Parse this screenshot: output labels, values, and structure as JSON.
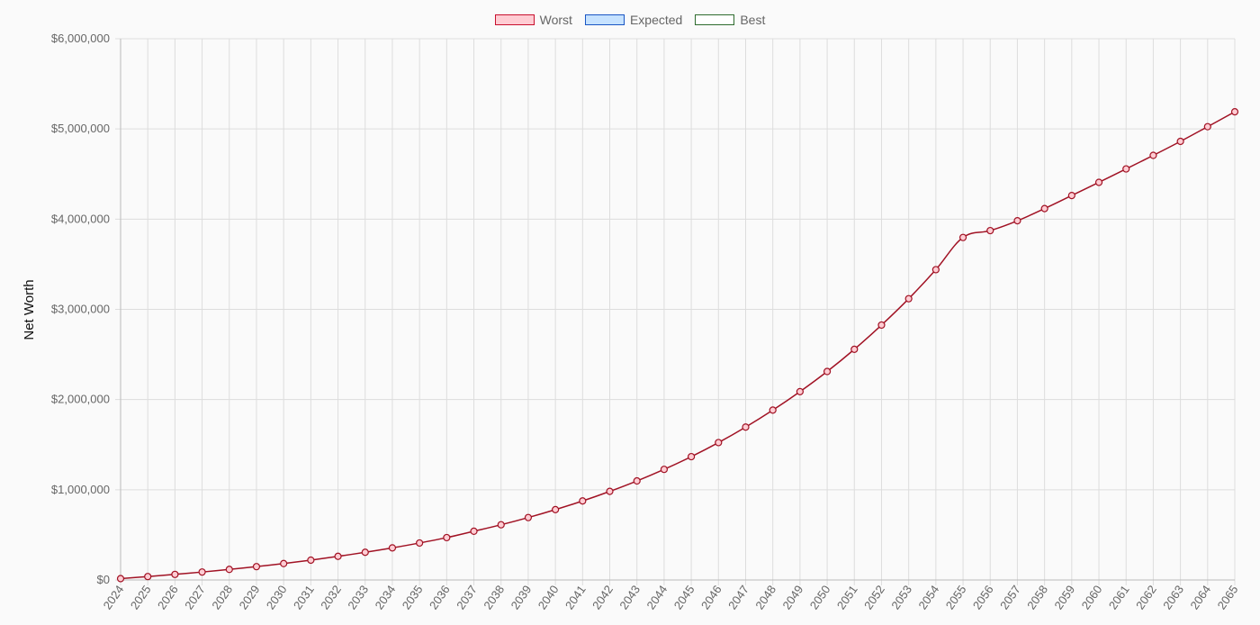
{
  "chart_data": {
    "type": "line",
    "title": "",
    "xlabel": "",
    "ylabel": "Net Worth",
    "ylim": [
      0,
      6000000
    ],
    "y_ticks": [
      "$0",
      "$1,000,000",
      "$2,000,000",
      "$3,000,000",
      "$4,000,000",
      "$5,000,000",
      "$6,000,000"
    ],
    "y_tick_values": [
      0,
      1000000,
      2000000,
      3000000,
      4000000,
      5000000,
      6000000
    ],
    "grid": true,
    "legend_position": "top-center",
    "x": [
      "2024",
      "2025",
      "2026",
      "2027",
      "2028",
      "2029",
      "2030",
      "2031",
      "2032",
      "2033",
      "2034",
      "2035",
      "2036",
      "2037",
      "2038",
      "2039",
      "2040",
      "2041",
      "2042",
      "2043",
      "2044",
      "2045",
      "2046",
      "2047",
      "2048",
      "2049",
      "2050",
      "2051",
      "2052",
      "2053",
      "2054",
      "2055",
      "2056",
      "2057",
      "2058",
      "2059",
      "2060",
      "2061",
      "2062",
      "2063",
      "2064",
      "2065"
    ],
    "legend": [
      {
        "name": "Worst",
        "fill": "#ffccd3",
        "stroke": "#c8102e"
      },
      {
        "name": "Expected",
        "fill": "#c6e2ff",
        "stroke": "#1a56c4"
      },
      {
        "name": "Best",
        "fill": "#ffffff",
        "stroke": "#2e6b2e"
      }
    ],
    "series": [
      {
        "name": "Worst",
        "color": "#a11224",
        "point_fill": "#ffccd3",
        "values": [
          15000,
          38000,
          62000,
          88000,
          117000,
          148000,
          182000,
          220000,
          262000,
          307000,
          356000,
          410000,
          470000,
          540000,
          612000,
          692000,
          780000,
          876000,
          982000,
          1098000,
          1226000,
          1367000,
          1523000,
          1695000,
          1883000,
          2088000,
          2311000,
          2557000,
          2826000,
          3118000,
          3440000,
          3797000,
          3873000,
          3982000,
          4117000,
          4262000,
          4408000,
          4557000,
          4707000,
          4862000,
          5025000,
          5190000
        ]
      }
    ]
  }
}
